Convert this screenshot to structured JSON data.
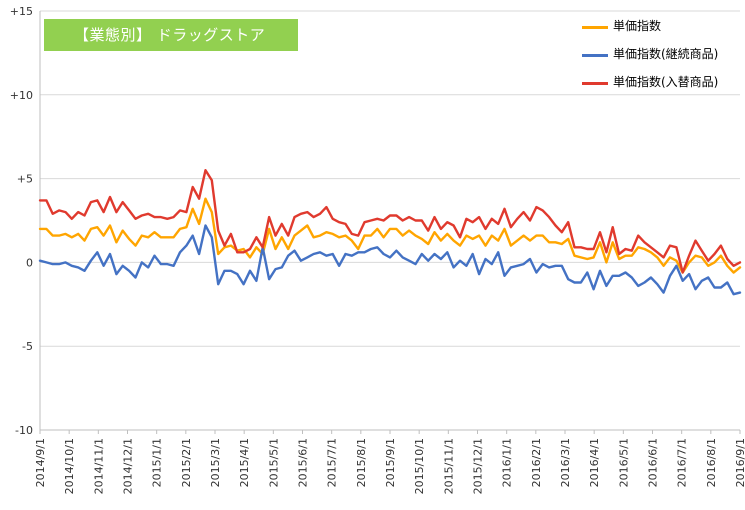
{
  "chart_data": {
    "type": "line",
    "title": "【業態別】 ドラッグストア",
    "ylim": [
      -10,
      15
    ],
    "yticks": [
      "+15",
      "+10",
      "+5",
      "0",
      "-5",
      "-10"
    ],
    "ytick_values": [
      15,
      10,
      5,
      0,
      -5,
      -10
    ],
    "x_tick_labels": [
      "2014/9/1",
      "2014/10/1",
      "2014/11/1",
      "2014/12/1",
      "2015/1/1",
      "2015/2/1",
      "2015/3/1",
      "2015/4/1",
      "2015/5/1",
      "2015/6/1",
      "2015/7/1",
      "2015/8/1",
      "2015/9/1",
      "2015/10/1",
      "2015/11/1",
      "2015/12/1",
      "2016/1/1",
      "2016/2/1",
      "2016/3/1",
      "2016/4/1",
      "2016/5/1",
      "2016/6/1",
      "2016/7/1",
      "2016/8/1",
      "2016/9/1"
    ],
    "grid": "horizontal",
    "legend_position": "top-right",
    "series": [
      {
        "name": "単価指数",
        "color": "#ffa500",
        "values": [
          2.0,
          2.0,
          1.6,
          1.6,
          1.7,
          1.5,
          1.7,
          1.3,
          2.0,
          2.1,
          1.6,
          2.2,
          1.2,
          1.9,
          1.4,
          1.0,
          1.6,
          1.5,
          1.8,
          1.5,
          1.5,
          1.5,
          2.0,
          2.1,
          3.2,
          2.3,
          3.8,
          3.0,
          0.5,
          0.9,
          1.0,
          0.7,
          0.8,
          0.3,
          0.9,
          0.5,
          2.0,
          0.8,
          1.5,
          0.8,
          1.6,
          1.9,
          2.2,
          1.5,
          1.6,
          1.8,
          1.7,
          1.5,
          1.6,
          1.3,
          0.8,
          1.6,
          1.6,
          2.0,
          1.5,
          2.0,
          2.0,
          1.6,
          1.9,
          1.6,
          1.4,
          1.1,
          1.8,
          1.3,
          1.7,
          1.3,
          1.0,
          1.6,
          1.4,
          1.6,
          1.0,
          1.6,
          1.3,
          2.0,
          1.0,
          1.3,
          1.6,
          1.3,
          1.6,
          1.6,
          1.2,
          1.2,
          1.1,
          1.4,
          0.4,
          0.3,
          0.2,
          0.3,
          1.2,
          0.0,
          1.2,
          0.2,
          0.4,
          0.4,
          0.9,
          0.8,
          0.6,
          0.3,
          -0.2,
          0.3,
          0.1,
          -0.6,
          0.0,
          0.4,
          0.3,
          -0.2,
          0.0,
          0.4,
          -0.2,
          -0.6,
          -0.3
        ],
        "show_in_legend": true
      },
      {
        "name": "単価指数(継続商品)",
        "color": "#4472c4",
        "values": [
          0.1,
          0.0,
          -0.1,
          -0.1,
          0.0,
          -0.2,
          -0.3,
          -0.5,
          0.1,
          0.6,
          -0.2,
          0.5,
          -0.7,
          -0.2,
          -0.5,
          -0.9,
          0.0,
          -0.3,
          0.4,
          -0.1,
          -0.1,
          -0.2,
          0.6,
          1.0,
          1.6,
          0.5,
          2.2,
          1.5,
          -1.3,
          -0.5,
          -0.5,
          -0.7,
          -1.3,
          -0.5,
          -1.1,
          0.9,
          -1.0,
          -0.4,
          -0.3,
          0.4,
          0.7,
          0.1,
          0.3,
          0.5,
          0.6,
          0.4,
          0.5,
          -0.2,
          0.5,
          0.4,
          0.6,
          0.6,
          0.8,
          0.9,
          0.5,
          0.3,
          0.7,
          0.3,
          0.1,
          -0.1,
          0.5,
          0.1,
          0.5,
          0.2,
          0.6,
          -0.3,
          0.1,
          -0.2,
          0.5,
          -0.7,
          0.2,
          -0.1,
          0.6,
          -0.8,
          -0.3,
          -0.2,
          -0.1,
          0.2,
          -0.6,
          -0.1,
          -0.3,
          -0.2,
          -0.2,
          -1.0,
          -1.2,
          -1.2,
          -0.6,
          -1.6,
          -0.5,
          -1.4,
          -0.8,
          -0.8,
          -0.6,
          -0.9,
          -1.4,
          -1.2,
          -0.9,
          -1.3,
          -1.8,
          -0.8,
          -0.2,
          -1.1,
          -0.7,
          -1.6,
          -1.1,
          -0.9,
          -1.5,
          -1.5,
          -1.2,
          -1.9,
          -1.8
        ],
        "show_in_legend": true
      },
      {
        "name": "単価指数(入替商品)",
        "color": "#e03a2e",
        "values": [
          3.7,
          3.7,
          2.9,
          3.1,
          3.0,
          2.6,
          3.0,
          2.8,
          3.6,
          3.7,
          3.0,
          3.9,
          3.0,
          3.6,
          3.1,
          2.6,
          2.8,
          2.9,
          2.7,
          2.7,
          2.6,
          2.7,
          3.1,
          3.0,
          4.5,
          3.8,
          5.5,
          4.9,
          1.9,
          1.0,
          1.7,
          0.6,
          0.6,
          0.8,
          1.5,
          0.9,
          2.7,
          1.6,
          2.3,
          1.6,
          2.7,
          2.9,
          3.0,
          2.7,
          2.9,
          3.3,
          2.6,
          2.4,
          2.3,
          1.7,
          1.6,
          2.4,
          2.5,
          2.6,
          2.5,
          2.8,
          2.8,
          2.5,
          2.7,
          2.5,
          2.5,
          1.9,
          2.7,
          2.0,
          2.4,
          2.2,
          1.5,
          2.6,
          2.4,
          2.7,
          2.0,
          2.6,
          2.3,
          3.2,
          2.1,
          2.6,
          3.0,
          2.5,
          3.3,
          3.1,
          2.7,
          2.2,
          1.8,
          2.4,
          0.9,
          0.9,
          0.8,
          0.8,
          1.8,
          0.6,
          2.1,
          0.5,
          0.8,
          0.7,
          1.6,
          1.2,
          0.9,
          0.6,
          0.3,
          1.0,
          0.9,
          -0.6,
          0.4,
          1.3,
          0.7,
          0.1,
          0.5,
          1.0,
          0.2,
          -0.2,
          0.0
        ],
        "show_in_legend": true
      }
    ]
  }
}
